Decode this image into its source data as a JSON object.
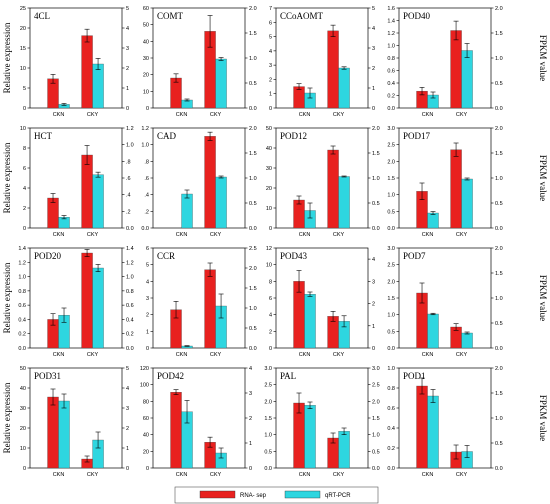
{
  "figure": {
    "left_axis_label": "Relative expression",
    "right_axis_label": "FPKM value",
    "legend": [
      "RNA- sep",
      "qRT-PCR"
    ],
    "colors": {
      "rna_seq": "#e8211f",
      "qrt_pcr": "#2ed6e0"
    }
  },
  "chart_data": [
    {
      "type": "bar",
      "title": "4CL",
      "categories": [
        "CKN",
        "CKY"
      ],
      "ylim_left": [
        0,
        25
      ],
      "left_ticks": [
        0,
        5,
        10,
        15,
        20,
        25
      ],
      "ylim_right": [
        0,
        5
      ],
      "right_ticks": [
        0,
        1,
        2,
        3,
        4,
        5
      ],
      "series": [
        {
          "name": "RNA- sep",
          "axis": "left",
          "values": [
            7.3,
            18.1
          ],
          "errors": [
            1.1,
            1.6
          ]
        },
        {
          "name": "qRT-PCR",
          "axis": "right",
          "values": [
            0.18,
            2.2
          ],
          "errors": [
            0.05,
            0.28
          ]
        }
      ]
    },
    {
      "type": "bar",
      "title": "COMT",
      "categories": [
        "CKN",
        "CKY"
      ],
      "ylim_left": [
        0,
        60
      ],
      "left_ticks": [
        0,
        10,
        20,
        30,
        40,
        50,
        60
      ],
      "ylim_right": [
        0,
        2.0
      ],
      "right_ticks": [
        "0.0",
        "0.5",
        "1.0",
        "1.5",
        "2.0"
      ],
      "series": [
        {
          "name": "RNA- sep",
          "axis": "left",
          "values": [
            18,
            46
          ],
          "errors": [
            2.5,
            9.5
          ]
        },
        {
          "name": "qRT-PCR",
          "axis": "right",
          "values": [
            0.16,
            0.98
          ],
          "errors": [
            0.02,
            0.03
          ]
        }
      ]
    },
    {
      "type": "bar",
      "title": "CCoAOMT",
      "categories": [
        "CKN",
        "CKY"
      ],
      "ylim_left": [
        0,
        7
      ],
      "left_ticks": [
        0,
        1,
        2,
        3,
        4,
        5,
        6,
        7
      ],
      "ylim_right": [
        0,
        5
      ],
      "right_ticks": [
        0,
        1,
        2,
        3,
        4,
        5
      ],
      "series": [
        {
          "name": "RNA- sep",
          "axis": "left",
          "values": [
            1.5,
            5.4
          ],
          "errors": [
            0.2,
            0.4
          ]
        },
        {
          "name": "qRT-PCR",
          "axis": "right",
          "values": [
            0.75,
            2.0
          ],
          "errors": [
            0.25,
            0.06
          ]
        }
      ]
    },
    {
      "type": "bar",
      "title": "POD40",
      "categories": [
        "CKN",
        "CKY"
      ],
      "ylim_left": [
        0,
        1.6
      ],
      "left_ticks": [
        "0.0",
        "0.2",
        "0.4",
        "0.6",
        "0.8",
        "1.0",
        "1.2",
        "1.4",
        "1.6"
      ],
      "ylim_right": [
        0,
        2.0
      ],
      "right_ticks": [
        "0.0",
        "0.5",
        "1.0",
        "1.5",
        "2.0"
      ],
      "series": [
        {
          "name": "RNA- sep",
          "axis": "left",
          "values": [
            0.27,
            1.24
          ],
          "errors": [
            0.06,
            0.15
          ]
        },
        {
          "name": "qRT-PCR",
          "axis": "right",
          "values": [
            0.26,
            1.15
          ],
          "errors": [
            0.06,
            0.14
          ]
        }
      ]
    },
    {
      "type": "bar",
      "title": "HCT",
      "categories": [
        "CKN",
        "CKY"
      ],
      "ylim_left": [
        0,
        10
      ],
      "left_ticks": [
        0,
        2,
        4,
        6,
        8,
        10
      ],
      "ylim_right": [
        0,
        1.2
      ],
      "right_ticks": [
        "0.0",
        ".2",
        ".4",
        ".6",
        ".8",
        "1.0",
        "1.2"
      ],
      "series": [
        {
          "name": "RNA- sep",
          "axis": "left",
          "values": [
            3.0,
            7.3
          ],
          "errors": [
            0.45,
            0.95
          ]
        },
        {
          "name": "qRT-PCR",
          "axis": "right",
          "values": [
            0.13,
            0.64
          ],
          "errors": [
            0.02,
            0.03
          ]
        }
      ]
    },
    {
      "type": "bar",
      "title": "CAD",
      "categories": [
        "CKN",
        "CKY"
      ],
      "ylim_left": [
        0,
        1.2
      ],
      "left_ticks": [
        "0.0",
        ".2",
        ".4",
        ".6",
        ".8",
        "1.0",
        "1.2"
      ],
      "ylim_right": [
        0,
        2.0
      ],
      "right_ticks": [
        "0.0",
        "0.5",
        "1.0",
        "1.5",
        "2.0"
      ],
      "series": [
        {
          "name": "RNA- sep",
          "axis": "left",
          "values": [
            0,
            1.1
          ],
          "errors": [
            0,
            0.05
          ]
        },
        {
          "name": "qRT-PCR",
          "axis": "right",
          "values": [
            0.68,
            1.02
          ],
          "errors": [
            0.08,
            0.02
          ]
        }
      ]
    },
    {
      "type": "bar",
      "title": "POD12",
      "categories": [
        "CKN",
        "CKY"
      ],
      "ylim_left": [
        0,
        50
      ],
      "left_ticks": [
        0,
        10,
        20,
        30,
        40,
        50
      ],
      "ylim_right": [
        0,
        2.0
      ],
      "right_ticks": [
        "0.0",
        "0.5",
        "1.0",
        "1.5",
        "2.0"
      ],
      "series": [
        {
          "name": "RNA- sep",
          "axis": "left",
          "values": [
            14,
            39
          ],
          "errors": [
            2,
            2
          ]
        },
        {
          "name": "qRT-PCR",
          "axis": "right",
          "values": [
            0.35,
            1.03
          ],
          "errors": [
            0.15,
            0.01
          ]
        }
      ]
    },
    {
      "type": "bar",
      "title": "POD17",
      "categories": [
        "CKN",
        "CKY"
      ],
      "ylim_left": [
        0,
        3.0
      ],
      "left_ticks": [
        "0.0",
        "0.5",
        "1.0",
        "1.5",
        "2.0",
        "2.5",
        "3.0"
      ],
      "ylim_right": [
        0,
        2.0
      ],
      "right_ticks": [
        "0.0",
        "0.5",
        "1.0",
        "1.5",
        "2.0"
      ],
      "series": [
        {
          "name": "RNA- sep",
          "axis": "left",
          "values": [
            1.1,
            2.35
          ],
          "errors": [
            0.25,
            0.2
          ]
        },
        {
          "name": "qRT-PCR",
          "axis": "right",
          "values": [
            0.3,
            0.98
          ],
          "errors": [
            0.03,
            0.02
          ]
        }
      ]
    },
    {
      "type": "bar",
      "title": "POD20",
      "categories": [
        "CKN",
        "CKY"
      ],
      "ylim_left": [
        0,
        1.4
      ],
      "left_ticks": [
        "0.0",
        "0.2",
        "0.4",
        "0.6",
        "0.8",
        "1.0",
        "1.2",
        "1.4"
      ],
      "ylim_right": [
        0,
        1.4
      ],
      "right_ticks": [
        "0.0",
        "0.2",
        "0.4",
        "0.6",
        "0.8",
        "1.0",
        "1.2",
        "1.4"
      ],
      "series": [
        {
          "name": "RNA- sep",
          "axis": "left",
          "values": [
            0.4,
            1.33
          ],
          "errors": [
            0.08,
            0.05
          ]
        },
        {
          "name": "qRT-PCR",
          "axis": "right",
          "values": [
            0.46,
            1.12
          ],
          "errors": [
            0.1,
            0.05
          ]
        }
      ]
    },
    {
      "type": "bar",
      "title": "CCR",
      "categories": [
        "CKN",
        "CKY"
      ],
      "ylim_left": [
        0,
        6
      ],
      "left_ticks": [
        0,
        1,
        2,
        3,
        4,
        5,
        6
      ],
      "ylim_right": [
        0,
        2.5
      ],
      "right_ticks": [
        "0.0",
        "0.5",
        "1.0",
        "1.5",
        "2.0",
        "2.5"
      ],
      "series": [
        {
          "name": "RNA- sep",
          "axis": "left",
          "values": [
            2.3,
            4.7
          ],
          "errors": [
            0.5,
            0.4
          ]
        },
        {
          "name": "qRT-PCR",
          "axis": "right",
          "values": [
            0.05,
            1.05
          ],
          "errors": [
            0.01,
            0.3
          ]
        }
      ]
    },
    {
      "type": "bar",
      "title": "POD43",
      "categories": [
        "CKN",
        "CKY"
      ],
      "ylim_left": [
        0,
        12
      ],
      "left_ticks": [
        0,
        2,
        4,
        6,
        8,
        10,
        12
      ],
      "ylim_right": [
        0,
        4.5
      ],
      "right_ticks": [
        0,
        1,
        2,
        3,
        4
      ],
      "series": [
        {
          "name": "RNA- sep",
          "axis": "left",
          "values": [
            8.0,
            3.8
          ],
          "errors": [
            1.3,
            0.6
          ]
        },
        {
          "name": "qRT-PCR",
          "axis": "right",
          "values": [
            2.42,
            1.2
          ],
          "errors": [
            0.1,
            0.25
          ]
        }
      ]
    },
    {
      "type": "bar",
      "title": "POD7",
      "categories": [
        "CKN",
        "CKY"
      ],
      "ylim_left": [
        0,
        3.0
      ],
      "left_ticks": [
        "0.0",
        "0.5",
        "1.0",
        "1.5",
        "2.0",
        "2.5",
        "3.0"
      ],
      "ylim_right": [
        0,
        2.0
      ],
      "right_ticks": [
        "0.0",
        "0.5",
        "1.0",
        "1.5",
        "2.0"
      ],
      "series": [
        {
          "name": "RNA- sep",
          "axis": "left",
          "values": [
            1.65,
            0.63
          ],
          "errors": [
            0.3,
            0.1
          ]
        },
        {
          "name": "qRT-PCR",
          "axis": "right",
          "values": [
            0.68,
            0.3
          ],
          "errors": [
            0.015,
            0.02
          ]
        }
      ]
    },
    {
      "type": "bar",
      "title": "POD31",
      "categories": [
        "CKN",
        "CKY"
      ],
      "ylim_left": [
        0,
        50
      ],
      "left_ticks": [
        0,
        10,
        20,
        30,
        40,
        50
      ],
      "ylim_right": [
        0,
        5
      ],
      "right_ticks": [
        0,
        1,
        2,
        3,
        4,
        5
      ],
      "series": [
        {
          "name": "RNA- sep",
          "axis": "left",
          "values": [
            35.5,
            4.5
          ],
          "errors": [
            4.0,
            1.5
          ]
        },
        {
          "name": "qRT-PCR",
          "axis": "right",
          "values": [
            3.35,
            1.4
          ],
          "errors": [
            0.35,
            0.4
          ]
        }
      ]
    },
    {
      "type": "bar",
      "title": "POD42",
      "categories": [
        "CKN",
        "CKY"
      ],
      "ylim_left": [
        0,
        120
      ],
      "left_ticks": [
        0,
        20,
        40,
        60,
        80,
        100,
        120
      ],
      "ylim_right": [
        0,
        4
      ],
      "right_ticks": [
        0,
        1,
        2,
        3,
        4
      ],
      "series": [
        {
          "name": "RNA- sep",
          "axis": "left",
          "values": [
            91,
            31
          ],
          "errors": [
            3,
            6
          ]
        },
        {
          "name": "qRT-PCR",
          "axis": "right",
          "values": [
            2.25,
            0.6
          ],
          "errors": [
            0.45,
            0.2
          ]
        }
      ]
    },
    {
      "type": "bar",
      "title": "PAL",
      "categories": [
        "CKN",
        "CKY"
      ],
      "ylim_left": [
        0,
        3.0
      ],
      "left_ticks": [
        "0.0",
        "0.5",
        "1.0",
        "1.5",
        "2.0",
        "2.5",
        "3.0"
      ],
      "ylim_right": [
        0,
        3.0
      ],
      "right_ticks": [
        "0.0",
        "0.5",
        "1.0",
        "1.5",
        "2.0",
        "2.5",
        "3.0"
      ],
      "series": [
        {
          "name": "RNA- sep",
          "axis": "left",
          "values": [
            1.95,
            0.9
          ],
          "errors": [
            0.3,
            0.15
          ]
        },
        {
          "name": "qRT-PCR",
          "axis": "right",
          "values": [
            1.88,
            1.1
          ],
          "errors": [
            0.1,
            0.1
          ]
        }
      ]
    },
    {
      "type": "bar",
      "title": "POD1",
      "categories": [
        "CKN",
        "CKY"
      ],
      "ylim_left": [
        0,
        1.0
      ],
      "left_ticks": [
        "0.0",
        "0.2",
        "0.4",
        "0.6",
        "0.8",
        "1.0"
      ],
      "ylim_right": [
        0,
        2.0
      ],
      "right_ticks": [
        "0.0",
        "0.5",
        "1.0",
        "1.5",
        "2.0"
      ],
      "series": [
        {
          "name": "RNA- sep",
          "axis": "left",
          "values": [
            0.82,
            0.16
          ],
          "errors": [
            0.08,
            0.07
          ]
        },
        {
          "name": "qRT-PCR",
          "axis": "right",
          "values": [
            1.44,
            0.33
          ],
          "errors": [
            0.13,
            0.12
          ]
        }
      ]
    }
  ]
}
